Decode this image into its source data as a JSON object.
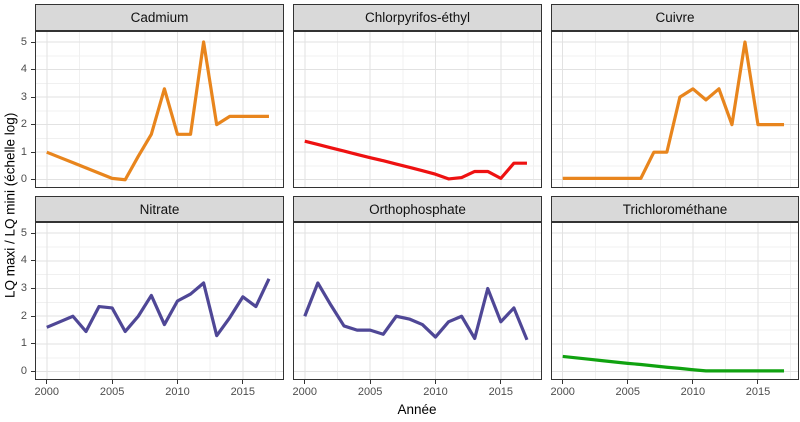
{
  "chart_data": {
    "type": "line",
    "title": "",
    "xlabel": "Année",
    "ylabel": "LQ maxi / LQ mini (échelle log)",
    "layout": "2x3 facets, shared axes",
    "grid": "major+minor, light gray on white, black panel border, gray facet strips",
    "x": [
      2000,
      2001,
      2002,
      2003,
      2004,
      2005,
      2006,
      2007,
      2008,
      2009,
      2010,
      2011,
      2012,
      2013,
      2014,
      2015,
      2016,
      2017
    ],
    "xlim": [
      1999.1,
      2018.15
    ],
    "ylim": [
      -0.3,
      5.4
    ],
    "x_ticks": [
      2000,
      2005,
      2010,
      2015
    ],
    "y_ticks": [
      0,
      1,
      2,
      3,
      4,
      5
    ],
    "x_minor_ticks": [
      2002.5,
      2007.5,
      2012.5,
      2017.5
    ],
    "y_minor_ticks": [
      0.5,
      1.5,
      2.5,
      3.5,
      4.5
    ],
    "facets": [
      {
        "name": "Cadmium",
        "color": "#E8851D",
        "values": [
          1.0,
          0.81,
          0.62,
          0.43,
          0.24,
          0.05,
          0.0,
          0.85,
          1.65,
          3.3,
          1.65,
          1.65,
          5.0,
          2.0,
          2.3,
          2.3,
          2.3,
          2.3
        ]
      },
      {
        "name": "Chlorpyrifos-éthyl",
        "color": "#EE1111",
        "values": [
          1.4,
          1.28,
          1.16,
          1.04,
          0.92,
          0.8,
          0.69,
          0.57,
          0.45,
          0.33,
          0.2,
          0.03,
          0.08,
          0.3,
          0.3,
          0.05,
          0.6,
          0.6
        ]
      },
      {
        "name": "Cuivre",
        "color": "#E8851D",
        "values": [
          0.05,
          0.05,
          0.05,
          0.05,
          0.05,
          0.05,
          0.05,
          1.0,
          1.0,
          3.0,
          3.3,
          2.9,
          3.3,
          2.0,
          5.0,
          2.0,
          2.0,
          2.0
        ]
      },
      {
        "name": "Nitrate",
        "color": "#4F4796",
        "values": [
          1.6,
          1.8,
          2.0,
          1.45,
          2.35,
          2.3,
          1.45,
          2.0,
          2.75,
          1.7,
          2.55,
          2.8,
          3.2,
          1.3,
          1.95,
          2.7,
          2.35,
          3.35
        ]
      },
      {
        "name": "Orthophosphate",
        "color": "#4F4796",
        "values": [
          2.0,
          3.2,
          2.4,
          1.65,
          1.5,
          1.5,
          1.35,
          2.0,
          1.9,
          1.7,
          1.25,
          1.8,
          2.0,
          1.2,
          3.0,
          1.8,
          2.3,
          1.15
        ]
      },
      {
        "name": "Trichlorométhane",
        "color": "#10A210",
        "values": [
          0.55,
          0.5,
          0.45,
          0.4,
          0.35,
          0.3,
          0.26,
          0.21,
          0.16,
          0.12,
          0.07,
          0.03,
          0.03,
          0.03,
          0.03,
          0.03,
          0.03,
          0.03
        ]
      }
    ]
  },
  "colors": {
    "strip_background": "#d9d9d9",
    "panel_border": "#333333",
    "grid_major": "#e2e2e2",
    "grid_minor": "#f0f0f0",
    "tick_text": "#4d4d4d",
    "orange": "#E8851D",
    "red": "#EE1111",
    "purple": "#4F4796",
    "green": "#10A210"
  }
}
